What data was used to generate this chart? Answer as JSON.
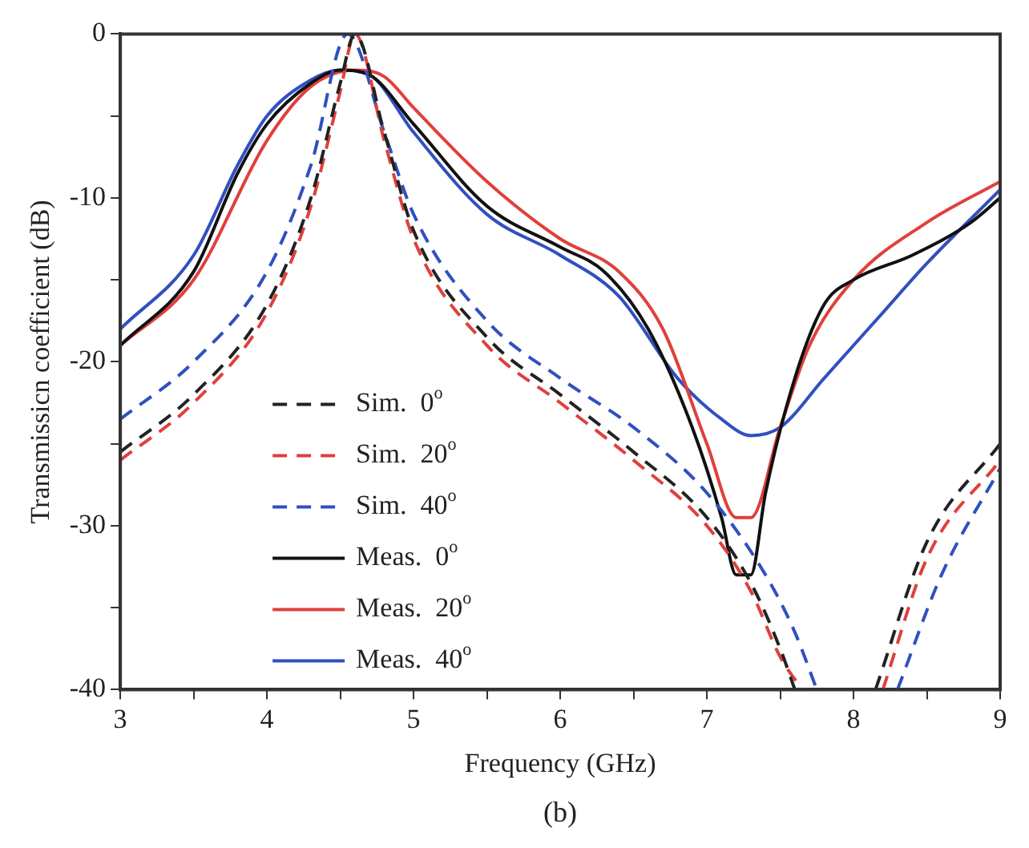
{
  "chart_data": {
    "type": "line",
    "xlabel": "Frequency (GHz)",
    "ylabel": "Transmissicn coefficient (dB)",
    "annotations": [
      "(b)"
    ],
    "legend": "bottom left",
    "grid": false,
    "marker": "none",
    "xlim": [
      3,
      9
    ],
    "xticks": [
      3,
      {
        "value": 3.5,
        "label": null
      },
      4,
      {
        "value": 4.5,
        "label": null
      },
      5,
      {
        "value": 5.5,
        "label": null
      },
      6,
      {
        "value": 6.5,
        "label": null
      },
      7,
      {
        "value": 7.5,
        "label": null
      },
      8,
      {
        "value": 8.5,
        "label": null
      },
      9
    ],
    "ylim": [
      -40,
      0
    ],
    "yticks": [
      -40,
      {
        "value": -35,
        "label": null
      },
      -30,
      {
        "value": -25,
        "label": null
      },
      -20,
      {
        "value": -15,
        "label": null
      },
      -10,
      {
        "value": -5,
        "label": null
      },
      0
    ],
    "series": [
      {
        "name": "Sim.  0$^{o}$",
        "color": "#222222",
        "line_style": "dashed",
        "x": [
          3,
          3.5,
          4,
          4.3,
          4.5,
          4.6,
          4.8,
          5,
          5.5,
          6,
          6.5,
          7,
          7.3,
          7.5,
          7.6,
          7.9,
          8.15,
          8.5,
          9
        ],
        "values": [
          -25.5,
          -22,
          -16.5,
          -10,
          -3,
          0,
          -6,
          -12,
          -18.5,
          -22,
          -25.5,
          -29.5,
          -33.5,
          -37.5,
          -40,
          null,
          -40,
          -31,
          -25
        ]
      },
      {
        "name": "Sim.  20$^{o}$",
        "color": "#e0403c",
        "line_style": "dashed",
        "x": [
          3,
          3.5,
          4,
          4.3,
          4.5,
          4.6,
          4.8,
          5,
          5.5,
          6,
          6.5,
          7,
          7.3,
          7.5,
          7.65,
          7.9,
          8.2,
          8.5,
          9
        ],
        "values": [
          -26,
          -22.5,
          -17,
          -10.5,
          -3.5,
          0,
          -6.5,
          -12.5,
          -19,
          -22.5,
          -26,
          -30,
          -34,
          -38,
          -40,
          null,
          -40,
          -32,
          -26
        ]
      },
      {
        "name": "Sim.  40$^{o}$",
        "color": "#3050c0",
        "line_style": "dashed",
        "x": [
          3,
          3.5,
          4,
          4.3,
          4.55,
          4.8,
          5,
          5.5,
          6,
          6.5,
          7,
          7.4,
          7.6,
          7.75,
          8,
          8.3,
          8.6,
          9
        ],
        "values": [
          -23.5,
          -20,
          -14.5,
          -8,
          0,
          -6,
          -11,
          -17.5,
          -21,
          -24,
          -28,
          -33,
          -36.5,
          -40,
          null,
          -40,
          -33,
          -26.5
        ]
      },
      {
        "name": "Meas.  0$^{o}$",
        "color": "#111111",
        "line_style": "solid",
        "x": [
          3,
          3.5,
          3.8,
          4,
          4.3,
          4.5,
          4.7,
          5,
          5.5,
          6,
          6.3,
          6.6,
          6.9,
          7.1,
          7.2,
          7.3,
          7.4,
          7.6,
          7.8,
          8,
          8.4,
          8.8,
          9
        ],
        "values": [
          -19,
          -14.5,
          -8.5,
          -5.5,
          -3,
          -2.2,
          -2.5,
          -5.5,
          -10.5,
          -13,
          -14.5,
          -18,
          -24,
          -29.5,
          -33,
          -33,
          -28,
          -21,
          -16.5,
          -15,
          -13.5,
          -11.5,
          -10
        ]
      },
      {
        "name": "Meas.  20$^{o}$",
        "color": "#e0403c",
        "line_style": "solid",
        "x": [
          3,
          3.5,
          4,
          4.3,
          4.6,
          4.8,
          5,
          5.5,
          6,
          6.4,
          6.7,
          7,
          7.2,
          7.3,
          7.5,
          7.7,
          8,
          8.5,
          9
        ],
        "values": [
          -19,
          -15,
          -6.5,
          -3.2,
          -2.2,
          -2.6,
          -4.5,
          -9,
          -12.5,
          -14.5,
          -18,
          -25,
          -29.5,
          -29.5,
          -24,
          -19,
          -15,
          -11.5,
          -9
        ]
      },
      {
        "name": "Meas.  40$^{o}$",
        "color": "#3050c0",
        "line_style": "solid",
        "x": [
          3,
          3.5,
          3.8,
          4,
          4.3,
          4.5,
          4.7,
          5,
          5.5,
          6,
          6.4,
          6.8,
          7.1,
          7.3,
          7.5,
          7.8,
          8.2,
          8.5,
          9
        ],
        "values": [
          -18,
          -13.5,
          -8,
          -5,
          -2.8,
          -2.2,
          -2.5,
          -6,
          -11,
          -13.5,
          -16,
          -21,
          -23.5,
          -24.5,
          -24,
          -21,
          -17,
          -14,
          -9.5
        ]
      }
    ]
  }
}
